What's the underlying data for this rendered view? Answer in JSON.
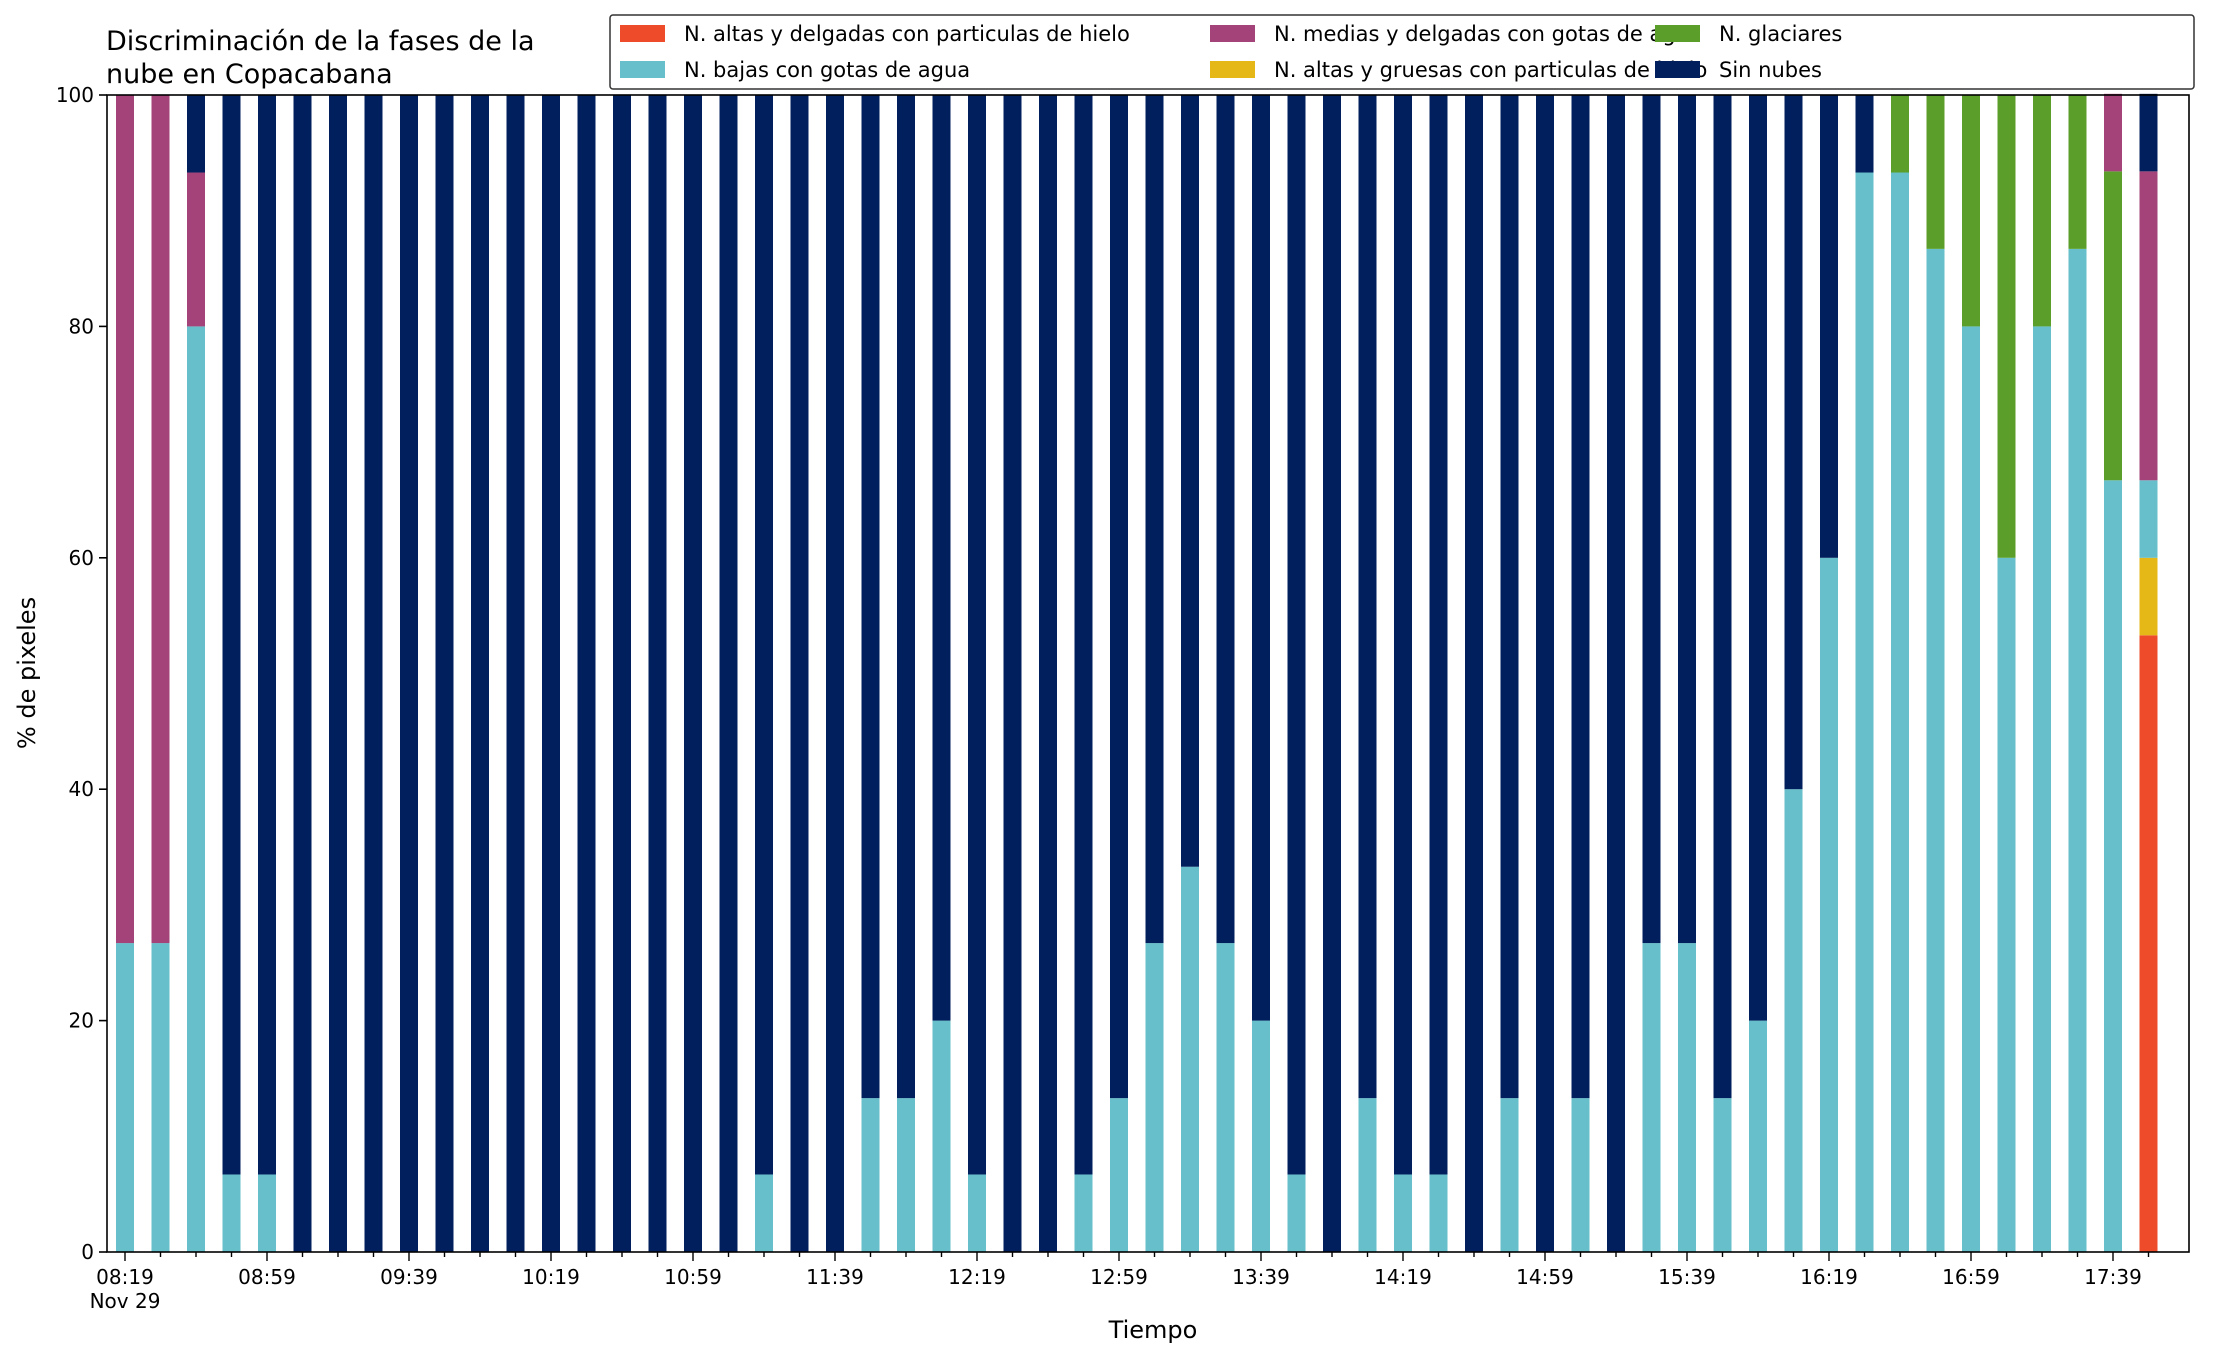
{
  "chart_data": {
    "type": "bar",
    "stacked": true,
    "title_line1": "Discriminación de la fases de la",
    "title_line2": "nube en Copacabana",
    "xlabel": "Tiempo",
    "ylabel": "% de pixeles",
    "ylim": [
      0,
      100
    ],
    "yticks": [
      0,
      20,
      40,
      60,
      80,
      100
    ],
    "xtick_labels": [
      "08:19",
      "08:59",
      "09:39",
      "10:19",
      "10:59",
      "11:39",
      "12:19",
      "12:59",
      "13:39",
      "14:19",
      "14:59",
      "15:39",
      "16:19",
      "16:59",
      "17:39"
    ],
    "xtick_date": "Nov 29",
    "grid": false,
    "legend_placement": "top-right",
    "times": [
      "08:19",
      "08:29",
      "08:39",
      "08:49",
      "08:59",
      "09:09",
      "09:19",
      "09:29",
      "09:39",
      "09:49",
      "09:59",
      "10:09",
      "10:19",
      "10:29",
      "10:39",
      "10:49",
      "10:59",
      "11:09",
      "11:19",
      "11:29",
      "11:39",
      "11:49",
      "11:59",
      "12:09",
      "12:19",
      "12:29",
      "12:39",
      "12:49",
      "12:59",
      "13:09",
      "13:19",
      "13:29",
      "13:39",
      "13:49",
      "13:59",
      "14:09",
      "14:19",
      "14:29",
      "14:39",
      "14:49",
      "14:59",
      "15:09",
      "15:19",
      "15:29",
      "15:39",
      "15:49",
      "15:59",
      "16:09",
      "16:19",
      "16:29",
      "16:39",
      "16:49",
      "16:59",
      "17:09",
      "17:19",
      "17:29",
      "17:39",
      "17:49"
    ],
    "series": [
      {
        "name": "N. altas y delgadas con particulas de hielo",
        "color": "#ee4b2b",
        "values": [
          0,
          0,
          0,
          0,
          0,
          0,
          0,
          0,
          0,
          0,
          0,
          0,
          0,
          0,
          0,
          0,
          0,
          0,
          0,
          0,
          0,
          0,
          0,
          0,
          0,
          0,
          0,
          0,
          0,
          0,
          0,
          0,
          0,
          0,
          0,
          0,
          0,
          0,
          0,
          0,
          0,
          0,
          0,
          0,
          0,
          0,
          0,
          0,
          0,
          0,
          0,
          0,
          0,
          0,
          0,
          0,
          0,
          53.3
        ]
      },
      {
        "name": "N. altas y gruesas con particulas de hielo",
        "color": "#e6b817",
        "values": [
          0,
          0,
          0,
          0,
          0,
          0,
          0,
          0,
          0,
          0,
          0,
          0,
          0,
          0,
          0,
          0,
          0,
          0,
          0,
          0,
          0,
          0,
          0,
          0,
          0,
          0,
          0,
          0,
          0,
          0,
          0,
          0,
          0,
          0,
          0,
          0,
          0,
          0,
          0,
          0,
          0,
          0,
          0,
          0,
          0,
          0,
          0,
          0,
          0,
          0,
          0,
          0,
          0,
          0,
          0,
          0,
          0,
          6.7
        ]
      },
      {
        "name": "N. bajas con gotas de agua",
        "color": "#66bfca",
        "values": [
          26.7,
          26.7,
          80,
          6.7,
          6.7,
          0,
          0,
          0,
          0,
          0,
          0,
          0,
          0,
          0,
          0,
          0,
          0,
          0,
          6.7,
          0,
          0,
          13.3,
          13.3,
          20,
          6.7,
          0,
          0,
          6.7,
          13.3,
          26.7,
          33.3,
          26.7,
          20,
          6.7,
          0,
          13.3,
          6.7,
          6.7,
          0,
          13.3,
          0,
          13.3,
          0,
          26.7,
          26.7,
          13.3,
          20,
          40,
          60,
          93.3,
          93.3,
          86.7,
          80,
          60,
          80,
          86.7,
          66.7,
          6.7
        ]
      },
      {
        "name": "N. glaciares",
        "color": "#5c9e2a",
        "values": [
          0,
          0,
          0,
          0,
          0,
          0,
          0,
          0,
          0,
          0,
          0,
          0,
          0,
          0,
          0,
          0,
          0,
          0,
          0,
          0,
          0,
          0,
          0,
          0,
          0,
          0,
          0,
          0,
          0,
          0,
          0,
          0,
          0,
          0,
          0,
          0,
          0,
          0,
          0,
          0,
          0,
          0,
          0,
          0,
          0,
          0,
          0,
          0,
          0,
          0,
          6.7,
          13.3,
          20,
          40,
          20,
          13.3,
          26.7,
          0
        ]
      },
      {
        "name": "N. medias y delgadas con gotas de agua",
        "color": "#a3437a",
        "values": [
          73.3,
          73.3,
          13.3,
          0,
          0,
          0,
          0,
          0,
          0,
          0,
          0,
          0,
          0,
          0,
          0,
          0,
          0,
          0,
          0,
          0,
          0,
          0,
          0,
          0,
          0,
          0,
          0,
          0,
          0,
          0,
          0,
          0,
          0,
          0,
          0,
          0,
          0,
          0,
          0,
          0,
          0,
          0,
          0,
          0,
          0,
          0,
          0,
          0,
          0,
          0,
          0,
          0,
          0,
          0,
          0,
          0,
          6.7,
          26.7
        ]
      },
      {
        "name": "Sin nubes",
        "color": "#001f5c",
        "values": [
          0,
          0,
          6.7,
          93.3,
          93.3,
          100,
          100,
          100,
          100,
          100,
          100,
          100,
          100,
          100,
          100,
          100,
          100,
          100,
          93.3,
          100,
          100,
          86.7,
          86.7,
          80,
          93.3,
          100,
          100,
          93.3,
          86.7,
          73.3,
          66.7,
          73.3,
          80,
          93.3,
          100,
          86.7,
          93.3,
          93.3,
          100,
          86.7,
          100,
          86.7,
          100,
          73.3,
          73.3,
          86.7,
          80,
          60,
          40,
          6.7,
          0,
          0,
          0,
          0,
          0,
          0,
          0,
          6.7
        ]
      }
    ],
    "legend_order": [
      0,
      2,
      4,
      1,
      3,
      5
    ]
  }
}
